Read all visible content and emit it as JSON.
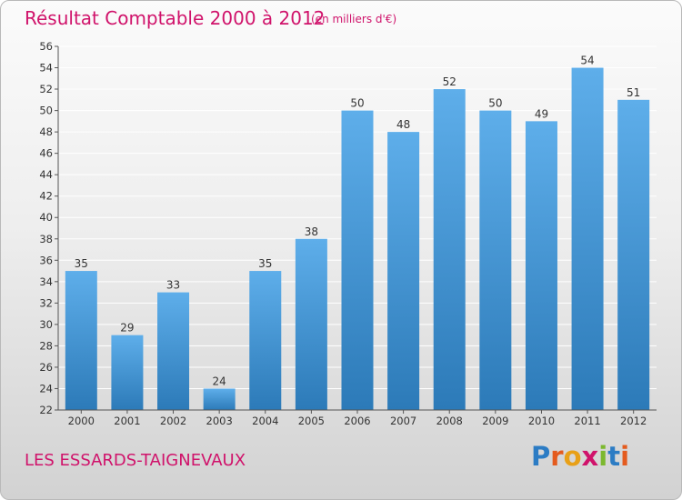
{
  "header": {
    "title": "Résultat Comptable 2000 à 2012",
    "subtitle": "(en milliers d'€)"
  },
  "footer": {
    "town": "LES ESSARDS-TAIGNEVAUX",
    "logo": "Proxiti"
  },
  "colors": {
    "accent": "#d0136b",
    "bar_top": "#5eaeea",
    "bar_bottom": "#2c7ab8",
    "grid": "#ffffff",
    "logo_letters": [
      "#2c7cc4",
      "#e45b1e",
      "#e8a017",
      "#d0136b",
      "#7cb82f",
      "#2c7cc4",
      "#e45b1e"
    ]
  },
  "chart_data": {
    "type": "bar",
    "title": "Résultat Comptable 2000 à 2012",
    "subtitle": "(en milliers d'€)",
    "xlabel": "",
    "ylabel": "",
    "categories": [
      "2000",
      "2001",
      "2002",
      "2003",
      "2004",
      "2005",
      "2006",
      "2007",
      "2008",
      "2009",
      "2010",
      "2011",
      "2012"
    ],
    "values": [
      35,
      29,
      33,
      24,
      35,
      38,
      50,
      48,
      52,
      50,
      49,
      54,
      51
    ],
    "ylim": [
      22,
      56
    ],
    "yticks": [
      22,
      24,
      26,
      28,
      30,
      32,
      34,
      36,
      38,
      40,
      42,
      44,
      46,
      48,
      50,
      52,
      54,
      56
    ],
    "grid": true,
    "legend": "none"
  }
}
